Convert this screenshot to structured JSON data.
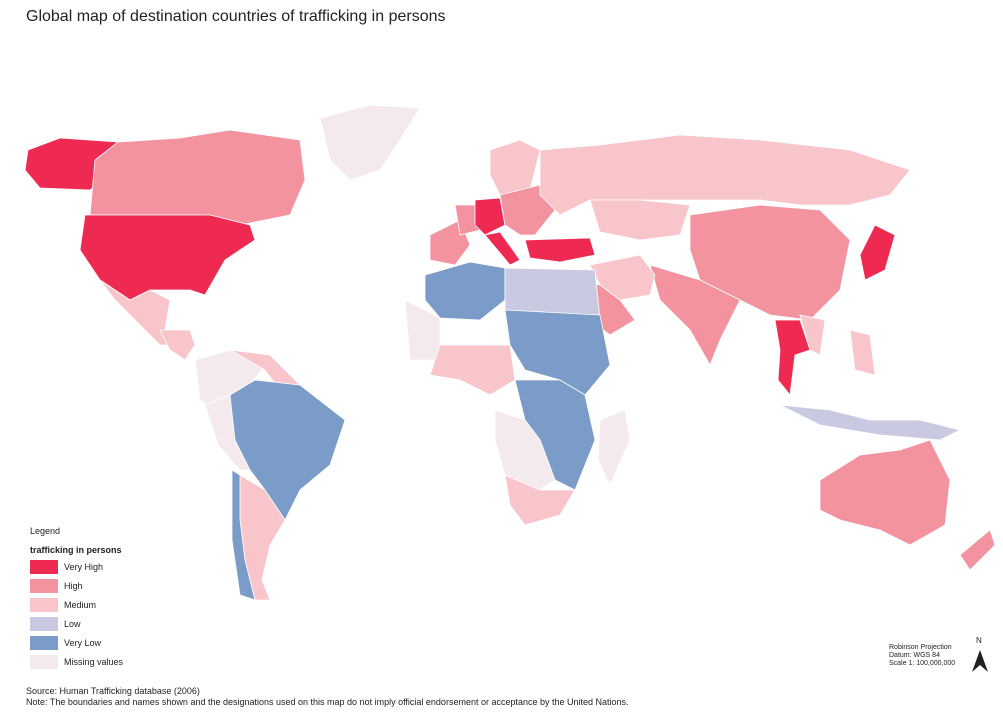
{
  "header": {
    "title": "Global map of destination countries of trafficking in persons"
  },
  "legend": {
    "heading": "Legend",
    "title": "trafficking in persons",
    "items": [
      {
        "label": "Very High",
        "color": "#ef2a52"
      },
      {
        "label": "High",
        "color": "#f2939f"
      },
      {
        "label": "Medium",
        "color": "#f8c5cb"
      },
      {
        "label": "Low",
        "color": "#c9c9e2"
      },
      {
        "label": "Very Low",
        "color": "#7b9bc9"
      },
      {
        "label": "Missing values",
        "color": "#f4eaee"
      }
    ]
  },
  "projection": [
    "Robinson Projection",
    "Datum: WGS 84",
    "Scale 1: 100,000,000"
  ],
  "north": "N",
  "footer": {
    "source": "Source: Human Trafficking database (2006)",
    "note": "Note: The boundaries and names shown and the designations used on this map do not imply official endorsement or acceptance by the United Nations."
  }
}
